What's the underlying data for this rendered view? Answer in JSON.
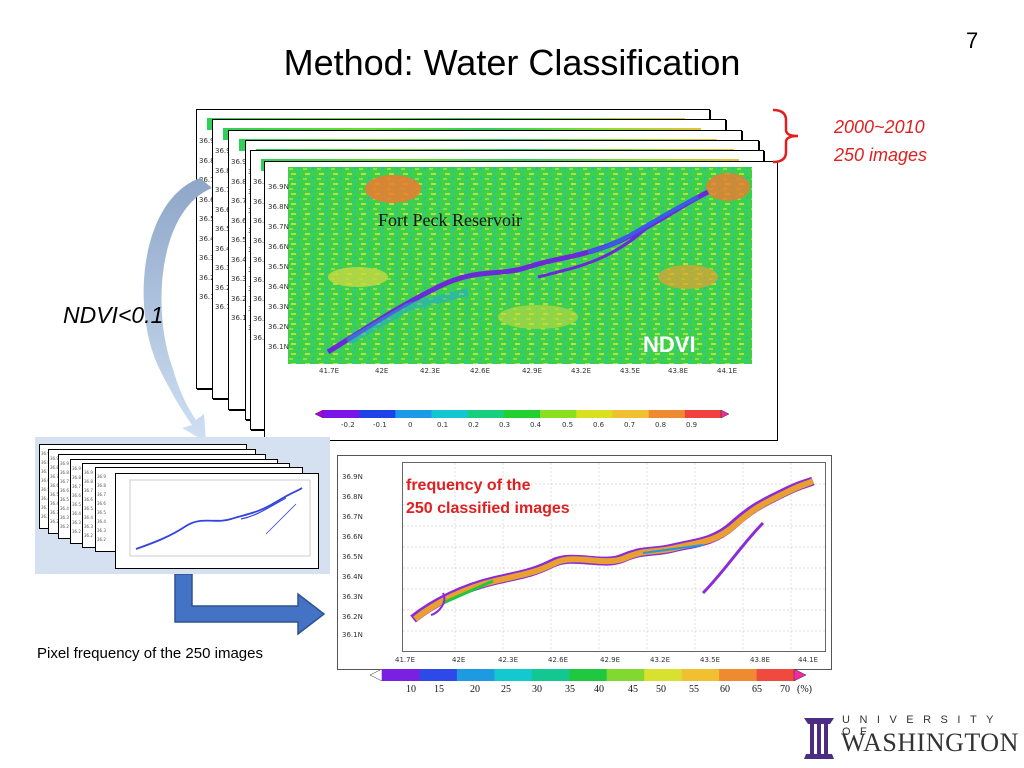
{
  "slide": {
    "page_number": "7",
    "title": "Method: Water Classification"
  },
  "ndvi_map": {
    "location_label": "Fort Peck Reservoir",
    "tag": "NDVI",
    "y_ticks": [
      "36.9N",
      "36.8N",
      "36.7N",
      "36.6N",
      "36.5N",
      "36.4N",
      "36.3N",
      "36.2N",
      "36.1N"
    ],
    "x_ticks": [
      "41.7E",
      "42E",
      "42.3E",
      "42.6E",
      "42.9E",
      "43.2E",
      "43.5E",
      "43.8E",
      "44.1E"
    ],
    "colorbar_ticks": [
      "-0.2",
      "-0.1",
      "0",
      "0.1",
      "0.2",
      "0.3",
      "0.4",
      "0.5",
      "0.6",
      "0.7",
      "0.8",
      "0.9"
    ],
    "colorbar_colors": [
      "#b000d8",
      "#7a14e8",
      "#2040e8",
      "#1a9ae8",
      "#12c8d0",
      "#16d080",
      "#22d030",
      "#8ae020",
      "#d8e020",
      "#f0c030",
      "#f08a30",
      "#f04040",
      "#f02aa0"
    ]
  },
  "stack_annotation": {
    "line1": "2000~2010",
    "line2": "250 images",
    "bracket_color": "#e02020"
  },
  "threshold_label": "NDVI<0.1",
  "frequency_map": {
    "caption_line1": "frequency of the",
    "caption_line2": "250 classified images",
    "y_ticks": [
      "36.9N",
      "36.8N",
      "36.7N",
      "36.6N",
      "36.5N",
      "36.4N",
      "36.3N",
      "36.2N",
      "36.1N"
    ],
    "x_ticks": [
      "41.7E",
      "42E",
      "42.3E",
      "42.6E",
      "42.9E",
      "43.2E",
      "43.5E",
      "43.8E",
      "44.1E"
    ],
    "colorbar_ticks": [
      "10",
      "15",
      "20",
      "25",
      "30",
      "35",
      "40",
      "45",
      "50",
      "55",
      "60",
      "65",
      "70",
      "(%)"
    ],
    "colorbar_colors": [
      "#9a1090",
      "#7a20e0",
      "#2d4ae8",
      "#1e9ae0",
      "#14c8d0",
      "#12c890",
      "#20c840",
      "#80d830",
      "#d8e030",
      "#f0c030",
      "#f08a30",
      "#f04a40",
      "#f02aa0"
    ]
  },
  "pixel_caption": "Pixel frequency of the 250 images",
  "logo": {
    "top_text": "UNIVERSITY OF",
    "bottom_text": "WASHINGTON",
    "color": "#4b2e83"
  },
  "colors": {
    "accent_red": "#e02020",
    "arrow_blue": "#4472c4",
    "curve_arrow_blue": "#9fbfe6",
    "panel_bg": "#d5e1f0"
  }
}
